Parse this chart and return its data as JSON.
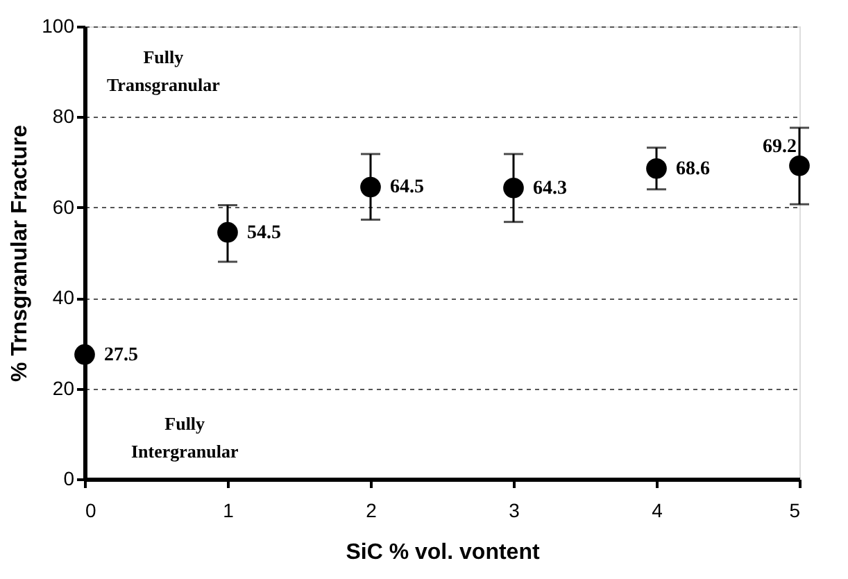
{
  "chart_data": {
    "type": "scatter",
    "xlabel": "SiC % vol. vontent",
    "ylabel": "% Trnsgranular Fracture",
    "x": [
      0,
      1,
      2,
      3,
      4,
      5
    ],
    "series": [
      {
        "color": "#000000",
        "values": [
          27.5,
          54.5,
          64.5,
          64.3,
          68.6,
          69.2
        ],
        "errors": [
          null,
          [
            48.0,
            60.5
          ],
          [
            57.3,
            71.8
          ],
          [
            56.8,
            71.8
          ],
          [
            64.0,
            73.2
          ],
          [
            60.7,
            77.6
          ]
        ]
      }
    ],
    "data_labels": true,
    "marker": "circle",
    "xlim": [
      0,
      5
    ],
    "xticks": [
      0,
      1,
      2,
      3,
      4,
      5
    ],
    "ylim": [
      0,
      100
    ],
    "yticks": [
      0,
      20,
      40,
      60,
      80,
      100
    ],
    "grid": "y",
    "annotations": [
      "Fully\nTransgranular",
      "Fully\nIntergranular"
    ]
  }
}
